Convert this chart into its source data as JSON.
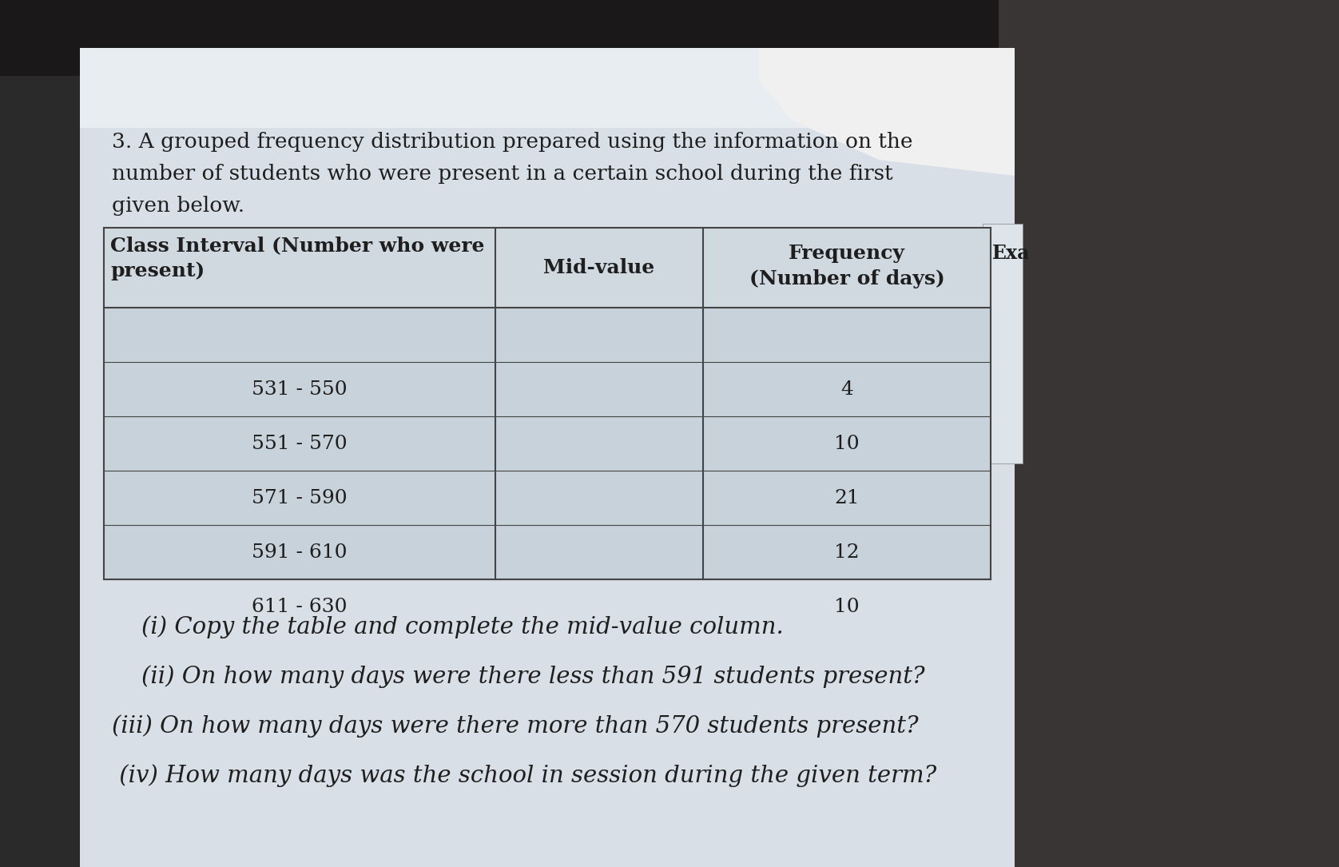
{
  "question_number": "3.",
  "intro_line1": "A grouped frequency distribution prepared using the information on the",
  "intro_line2": "number of students who were present in a certain school during the first",
  "intro_line3": "given below.",
  "table_header": [
    "Class Interval (Number who were\npresent)",
    "Mid-value",
    "Frequency\n(Number of days)"
  ],
  "table_rows": [
    [
      "531 - 550",
      "",
      "4"
    ],
    [
      "551 - 570",
      "",
      "10"
    ],
    [
      "571 - 590",
      "",
      "21"
    ],
    [
      "591 - 610",
      "",
      "12"
    ],
    [
      "611 - 630",
      "",
      "10"
    ]
  ],
  "questions": [
    "    (i) Copy the table and complete the mid-value column.",
    "    (ii) On how many days were there less than 591 students present?",
    "(iii) On how many days were there more than 570 students present?",
    " (iv) How many days was the school in session during the given term?"
  ],
  "bg_dark": "#1a1a1a",
  "page_color": "#ccd4dc",
  "page_white": "#dde4ea",
  "table_bg": "#c8d2dc",
  "text_color": "#1e1e1e",
  "table_line_color": "#444444",
  "title_fontsize": 19,
  "body_fontsize": 18,
  "question_fontsize": 21
}
